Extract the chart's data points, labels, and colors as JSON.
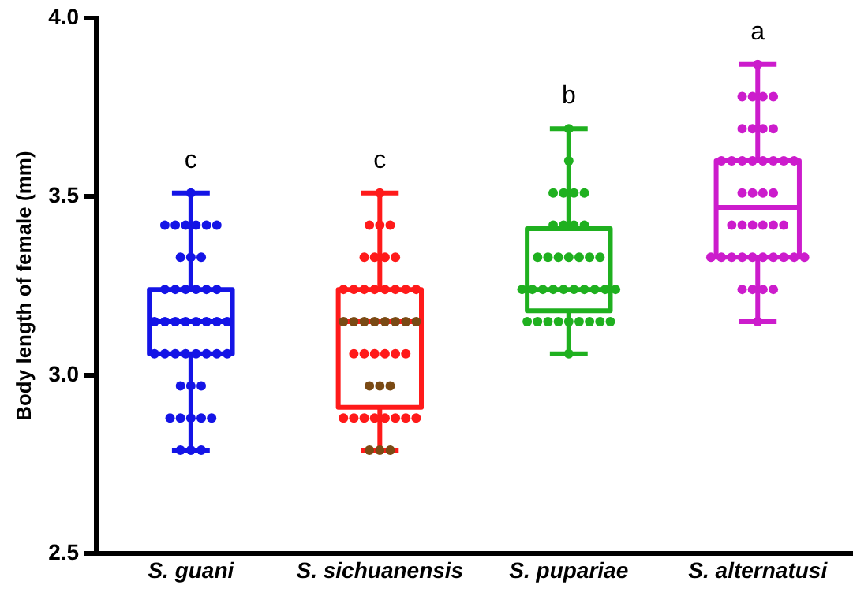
{
  "chart_data": {
    "type": "box",
    "ylabel": "Body length of female (mm)",
    "categories": [
      "S. guani",
      "S. sichuanensis",
      "S. pupariae",
      "S. alternatusi"
    ],
    "colors": [
      "#1414e6",
      "#ff1a1a",
      "#1fb01f",
      "#cc1ccc"
    ],
    "boxes": [
      {
        "low": 2.79,
        "q1": 3.06,
        "median": 3.15,
        "q3": 3.24,
        "high": 3.51
      },
      {
        "low": 2.79,
        "q1": 2.91,
        "median": 3.15,
        "q3": 3.24,
        "high": 3.51
      },
      {
        "low": 3.06,
        "q1": 3.18,
        "median": 3.24,
        "q3": 3.41,
        "high": 3.69
      },
      {
        "low": 3.15,
        "q1": 3.33,
        "median": 3.47,
        "q3": 3.6,
        "high": 3.87
      }
    ],
    "series": [
      {
        "type": "scatter",
        "color": "#1414e6",
        "x": [
          "S. guani",
          "S. guani",
          "S. guani",
          "S. guani",
          "S. guani",
          "S. guani",
          "S. guani",
          "S. guani",
          "S. guani",
          "S. guani",
          "S. guani",
          "S. guani",
          "S. guani",
          "S. guani",
          "S. guani",
          "S. guani",
          "S. guani",
          "S. guani",
          "S. guani",
          "S. guani",
          "S. guani",
          "S. guani",
          "S. guani",
          "S. guani",
          "S. guani",
          "S. guani",
          "S. guani",
          "S. guani",
          "S. guani",
          "S. guani",
          "S. guani",
          "S. guani",
          "S. guani",
          "S. guani",
          "S. guani",
          "S. guani",
          "S. guani",
          "S. guani",
          "S. guani",
          "S. guani",
          "S. guani",
          "S. guani",
          "S. guani"
        ],
        "values": [
          3.51,
          3.42,
          3.42,
          3.42,
          3.42,
          3.42,
          3.42,
          3.33,
          3.33,
          3.33,
          3.24,
          3.24,
          3.24,
          3.24,
          3.24,
          3.24,
          3.15,
          3.15,
          3.15,
          3.15,
          3.15,
          3.15,
          3.15,
          3.15,
          3.06,
          3.06,
          3.06,
          3.06,
          3.06,
          3.06,
          3.06,
          3.06,
          2.97,
          2.97,
          2.97,
          2.88,
          2.88,
          2.88,
          2.88,
          2.88,
          2.79,
          2.79,
          2.79
        ]
      },
      {
        "type": "scatter",
        "colors": [
          "#ff1a1a",
          "#ff1a1a",
          "#ff1a1a",
          "#ff1a1a",
          "#ff1a1a",
          "#ff1a1a",
          "#ff1a1a",
          "#ff1a1a",
          "#ff1a1a",
          "#ff1a1a",
          "#ff1a1a",
          "#ff1a1a",
          "#ff1a1a",
          "#ff1a1a",
          "#ff1a1a",
          "#ff1a1a",
          "#7a4a14",
          "#7a4a14",
          "#7a4a14",
          "#7a4a14",
          "#7a4a14",
          "#7a4a14",
          "#7a4a14",
          "#7a4a14",
          "#ff1a1a",
          "#ff1a1a",
          "#ff1a1a",
          "#ff1a1a",
          "#ff1a1a",
          "#ff1a1a",
          "#7a4a14",
          "#7a4a14",
          "#7a4a14",
          "#ff1a1a",
          "#ff1a1a",
          "#ff1a1a",
          "#ff1a1a",
          "#ff1a1a",
          "#ff1a1a",
          "#ff1a1a",
          "#ff1a1a",
          "#7a4a14",
          "#7a4a14",
          "#7a4a14"
        ],
        "x": [
          "S. sichuanensis",
          "S. sichuanensis",
          "S. sichuanensis",
          "S. sichuanensis",
          "S. sichuanensis",
          "S. sichuanensis",
          "S. sichuanensis",
          "S. sichuanensis",
          "S. sichuanensis",
          "S. sichuanensis",
          "S. sichuanensis",
          "S. sichuanensis",
          "S. sichuanensis",
          "S. sichuanensis",
          "S. sichuanensis",
          "S. sichuanensis",
          "S. sichuanensis",
          "S. sichuanensis",
          "S. sichuanensis",
          "S. sichuanensis",
          "S. sichuanensis",
          "S. sichuanensis",
          "S. sichuanensis",
          "S. sichuanensis",
          "S. sichuanensis",
          "S. sichuanensis",
          "S. sichuanensis",
          "S. sichuanensis",
          "S. sichuanensis",
          "S. sichuanensis",
          "S. sichuanensis",
          "S. sichuanensis",
          "S. sichuanensis",
          "S. sichuanensis",
          "S. sichuanensis",
          "S. sichuanensis",
          "S. sichuanensis",
          "S. sichuanensis",
          "S. sichuanensis",
          "S. sichuanensis",
          "S. sichuanensis",
          "S. sichuanensis",
          "S. sichuanensis",
          "S. sichuanensis"
        ],
        "values": [
          3.51,
          3.42,
          3.42,
          3.42,
          3.33,
          3.33,
          3.33,
          3.33,
          3.24,
          3.24,
          3.24,
          3.24,
          3.24,
          3.24,
          3.24,
          3.24,
          3.15,
          3.15,
          3.15,
          3.15,
          3.15,
          3.15,
          3.15,
          3.15,
          3.06,
          3.06,
          3.06,
          3.06,
          3.06,
          3.06,
          2.97,
          2.97,
          2.97,
          2.88,
          2.88,
          2.88,
          2.88,
          2.88,
          2.88,
          2.88,
          2.88,
          2.79,
          2.79,
          2.79
        ]
      },
      {
        "type": "scatter",
        "color": "#1fb01f",
        "x": [
          "S. pupariae",
          "S. pupariae",
          "S. pupariae",
          "S. pupariae",
          "S. pupariae",
          "S. pupariae",
          "S. pupariae",
          "S. pupariae",
          "S. pupariae",
          "S. pupariae",
          "S. pupariae",
          "S. pupariae",
          "S. pupariae",
          "S. pupariae",
          "S. pupariae",
          "S. pupariae",
          "S. pupariae",
          "S. pupariae",
          "S. pupariae",
          "S. pupariae",
          "S. pupariae",
          "S. pupariae",
          "S. pupariae",
          "S. pupariae",
          "S. pupariae",
          "S. pupariae",
          "S. pupariae",
          "S. pupariae",
          "S. pupariae",
          "S. pupariae",
          "S. pupariae",
          "S. pupariae",
          "S. pupariae",
          "S. pupariae",
          "S. pupariae",
          "S. pupariae",
          "S. pupariae"
        ],
        "values": [
          3.69,
          3.6,
          3.51,
          3.51,
          3.51,
          3.51,
          3.42,
          3.42,
          3.42,
          3.42,
          3.33,
          3.33,
          3.33,
          3.33,
          3.33,
          3.33,
          3.33,
          3.24,
          3.24,
          3.24,
          3.24,
          3.24,
          3.24,
          3.24,
          3.24,
          3.24,
          3.24,
          3.15,
          3.15,
          3.15,
          3.15,
          3.15,
          3.15,
          3.15,
          3.15,
          3.15,
          3.06
        ]
      },
      {
        "type": "scatter",
        "color": "#cc1ccc",
        "x": [
          "S. alternatusi",
          "S. alternatusi",
          "S. alternatusi",
          "S. alternatusi",
          "S. alternatusi",
          "S. alternatusi",
          "S. alternatusi",
          "S. alternatusi",
          "S. alternatusi",
          "S. alternatusi",
          "S. alternatusi",
          "S. alternatusi",
          "S. alternatusi",
          "S. alternatusi",
          "S. alternatusi",
          "S. alternatusi",
          "S. alternatusi",
          "S. alternatusi",
          "S. alternatusi",
          "S. alternatusi",
          "S. alternatusi",
          "S. alternatusi",
          "S. alternatusi",
          "S. alternatusi",
          "S. alternatusi",
          "S. alternatusi",
          "S. alternatusi",
          "S. alternatusi",
          "S. alternatusi",
          "S. alternatusi",
          "S. alternatusi",
          "S. alternatusi",
          "S. alternatusi",
          "S. alternatusi",
          "S. alternatusi",
          "S. alternatusi",
          "S. alternatusi",
          "S. alternatusi",
          "S. alternatusi",
          "S. alternatusi",
          "S. alternatusi",
          "S. alternatusi"
        ],
        "values": [
          3.87,
          3.78,
          3.78,
          3.78,
          3.78,
          3.69,
          3.69,
          3.69,
          3.69,
          3.6,
          3.6,
          3.6,
          3.6,
          3.6,
          3.6,
          3.6,
          3.6,
          3.51,
          3.51,
          3.51,
          3.51,
          3.42,
          3.42,
          3.42,
          3.42,
          3.42,
          3.42,
          3.33,
          3.33,
          3.33,
          3.33,
          3.33,
          3.33,
          3.33,
          3.33,
          3.33,
          3.33,
          3.24,
          3.24,
          3.24,
          3.24,
          3.15
        ]
      }
    ],
    "ylim": [
      2.5,
      4
    ],
    "yticks": [
      {
        "value": 2.5,
        "label": "2.5"
      },
      {
        "value": 3,
        "label": "3.0"
      },
      {
        "value": 3.5,
        "label": "3.5"
      },
      {
        "value": 4,
        "label": "4.0"
      }
    ],
    "annotations": [
      "c",
      "c",
      "b",
      "a"
    ],
    "grid": false,
    "legend": false,
    "marker": "circle"
  }
}
